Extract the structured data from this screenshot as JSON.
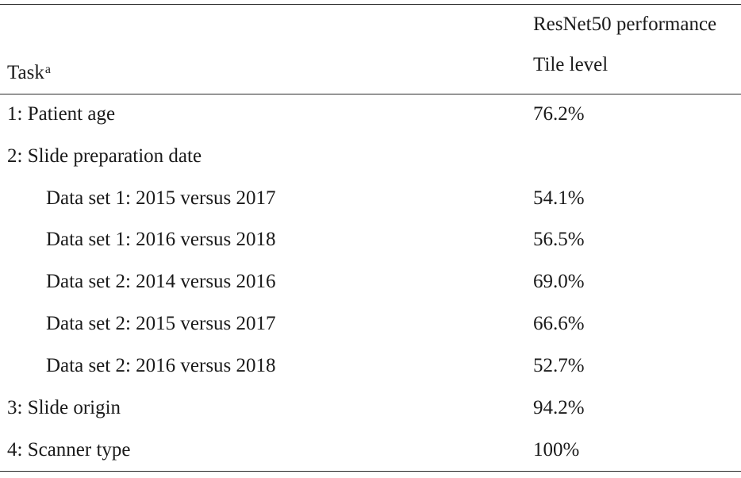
{
  "header": {
    "group_label": "ResNet50 performance",
    "task_label": "Task",
    "task_superscript": "a",
    "level_label": "Tile level"
  },
  "rows": [
    {
      "task": "1: Patient age",
      "value": "76.2%"
    },
    {
      "task": "2: Slide preparation date",
      "value": ""
    },
    {
      "task": "Data set 1: 2015 versus 2017",
      "value": "54.1%"
    },
    {
      "task": "Data set 1: 2016 versus 2018",
      "value": "56.5%"
    },
    {
      "task": "Data set 2: 2014 versus 2016",
      "value": "69.0%"
    },
    {
      "task": "Data set 2: 2015 versus 2017",
      "value": "66.6%"
    },
    {
      "task": "Data set 2: 2016 versus 2018",
      "value": "52.7%"
    },
    {
      "task": "3: Slide origin",
      "value": "94.2%"
    },
    {
      "task": "4: Scanner type",
      "value": "100%"
    }
  ]
}
